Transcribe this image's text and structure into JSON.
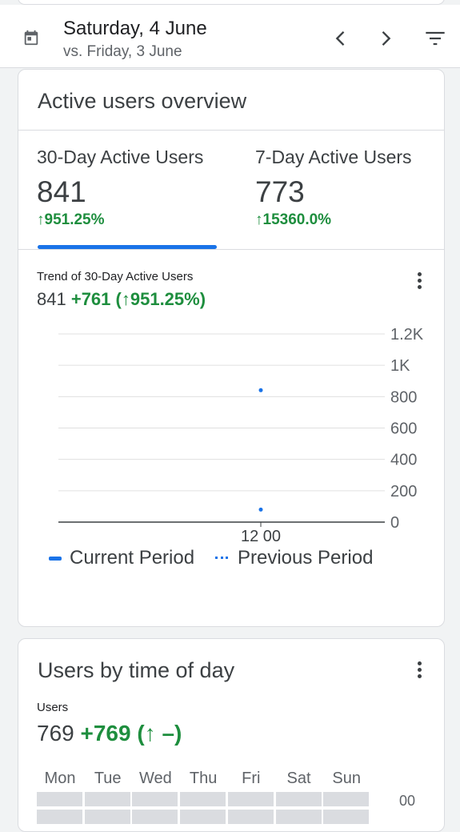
{
  "header": {
    "date": "Saturday, 4 June",
    "comparison": "vs. Friday, 3 June",
    "icons": [
      "calendar-icon",
      "chevron-left-icon",
      "chevron-right-icon",
      "filter-icon"
    ]
  },
  "active_users_card": {
    "title": "Active users overview",
    "metrics": [
      {
        "label": "30-Day Active Users",
        "value": "841",
        "change": "↑951.25%"
      },
      {
        "label": "7-Day Active Users",
        "value": "773",
        "change": "↑15360.0%"
      }
    ],
    "trend_title": "Trend of 30-Day Active Users",
    "trend_value": "841",
    "trend_delta": "+761",
    "trend_percent": "(↑951.25%)",
    "legend": {
      "current": "Current Period",
      "previous": "Previous Period"
    }
  },
  "chart_data": {
    "type": "scatter",
    "categories": [
      "12 00"
    ],
    "series": [
      {
        "name": "Current Period",
        "values": [
          841
        ]
      },
      {
        "name": "Previous Period",
        "values": [
          80
        ]
      }
    ],
    "y_ticks": [
      "0",
      "200",
      "400",
      "600",
      "800",
      "1K",
      "1.2K"
    ],
    "ylim": [
      0,
      1200
    ],
    "grid": true,
    "legend_position": "bottom",
    "colors": {
      "current": "#1a73e8",
      "previous": "#1a73e8"
    }
  },
  "time_of_day_card": {
    "title": "Users by time of day",
    "metric_label": "Users",
    "value": "769",
    "delta": "+769",
    "percent": "(↑ –)",
    "days": [
      "Mon",
      "Tue",
      "Wed",
      "Thu",
      "Fri",
      "Sat",
      "Sun"
    ],
    "first_hour_label": "00"
  }
}
